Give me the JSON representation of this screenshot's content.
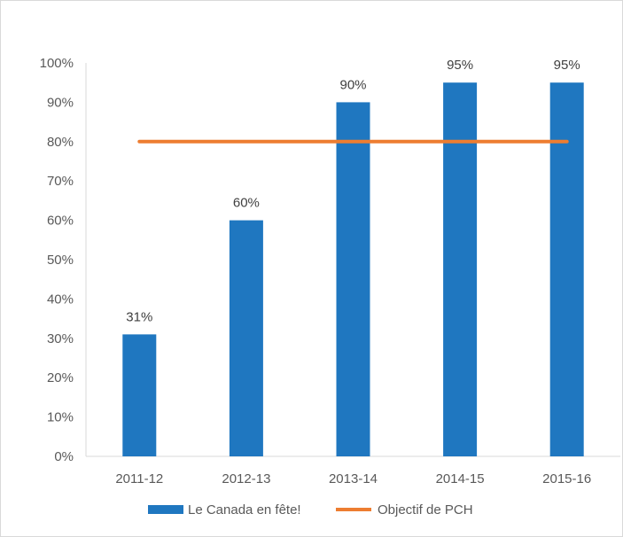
{
  "chart_data": {
    "type": "bar",
    "categories": [
      "2011-12",
      "2012-13",
      "2013-14",
      "2014-15",
      "2015-16"
    ],
    "series": [
      {
        "name": "Le Canada en fête!",
        "type": "bar",
        "color": "#1f77c0",
        "values": [
          31,
          60,
          90,
          95,
          95
        ],
        "data_labels": [
          "31%",
          "60%",
          "90%",
          "95%",
          "95%"
        ]
      },
      {
        "name": "Objectif de PCH",
        "type": "line",
        "color": "#ed7d31",
        "values": [
          80,
          80,
          80,
          80,
          80
        ]
      }
    ],
    "y_ticks": [
      "0%",
      "10%",
      "20%",
      "30%",
      "40%",
      "50%",
      "60%",
      "70%",
      "80%",
      "90%",
      "100%"
    ],
    "ylim": [
      0,
      100
    ],
    "grid": false,
    "legend_position": "bottom"
  }
}
